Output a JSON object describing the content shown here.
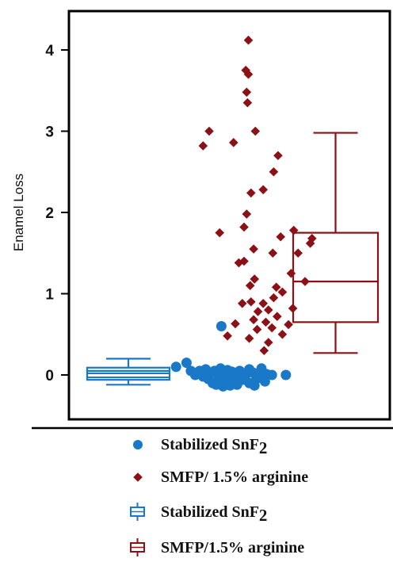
{
  "chart_data": {
    "type": "scatter",
    "ylabel": "Enamel Loss",
    "ylim": [
      -0.5,
      4.5
    ],
    "yticks": [
      0,
      1,
      2,
      3,
      4
    ],
    "grid": false,
    "legend_position": "bottom",
    "series": [
      {
        "name": "Stabilized SnF₂",
        "kind": "points",
        "marker": "circle",
        "color": "#1a78c8",
        "points": [
          [
            0.02,
            0.1
          ],
          [
            0.14,
            0.15
          ],
          [
            0.19,
            0.05
          ],
          [
            0.24,
            0.0
          ],
          [
            0.29,
            0.05
          ],
          [
            0.33,
            -0.02
          ],
          [
            0.36,
            0.07
          ],
          [
            0.39,
            -0.05
          ],
          [
            0.42,
            0.02
          ],
          [
            0.44,
            -0.1
          ],
          [
            0.46,
            0.05
          ],
          [
            0.48,
            -0.12
          ],
          [
            0.5,
            0.0
          ],
          [
            0.51,
            -0.08
          ],
          [
            0.53,
            0.08
          ],
          [
            0.55,
            -0.05
          ],
          [
            0.56,
            -0.14
          ],
          [
            0.58,
            0.03
          ],
          [
            0.6,
            -0.1
          ],
          [
            0.61,
            0.06
          ],
          [
            0.63,
            -0.02
          ],
          [
            0.64,
            -0.13
          ],
          [
            0.66,
            0.04
          ],
          [
            0.68,
            -0.08
          ],
          [
            0.7,
            0.0
          ],
          [
            0.72,
            -0.12
          ],
          [
            0.75,
            0.05
          ],
          [
            0.78,
            -0.06
          ],
          [
            0.82,
            0.0
          ],
          [
            0.86,
            -0.1
          ],
          [
            0.9,
            0.03
          ],
          [
            0.94,
            -0.05
          ],
          [
            0.98,
            0.0
          ],
          [
            1.06,
            0.01
          ],
          [
            1.28,
            0.0
          ],
          [
            0.86,
            0.07
          ],
          [
            0.92,
            -0.13
          ],
          [
            1.0,
            0.08
          ],
          [
            1.04,
            -0.08
          ],
          [
            1.12,
            0.0
          ],
          [
            0.54,
            0.6
          ]
        ]
      },
      {
        "name": "SMFP/ 1.5% arginine",
        "kind": "points",
        "marker": "diamond",
        "color": "#8b1116",
        "points": [
          [
            0.85,
            4.12
          ],
          [
            0.82,
            3.75
          ],
          [
            0.85,
            3.7
          ],
          [
            0.83,
            3.48
          ],
          [
            0.84,
            3.35
          ],
          [
            0.4,
            3.0
          ],
          [
            0.93,
            3.0
          ],
          [
            0.33,
            2.82
          ],
          [
            0.68,
            2.86
          ],
          [
            1.19,
            2.7
          ],
          [
            1.14,
            2.5
          ],
          [
            1.02,
            2.28
          ],
          [
            0.88,
            2.24
          ],
          [
            0.83,
            1.98
          ],
          [
            0.8,
            1.82
          ],
          [
            0.52,
            1.75
          ],
          [
            1.37,
            1.78
          ],
          [
            1.22,
            1.7
          ],
          [
            1.58,
            1.68
          ],
          [
            1.56,
            1.62
          ],
          [
            1.42,
            1.5
          ],
          [
            1.13,
            1.5
          ],
          [
            0.91,
            1.55
          ],
          [
            0.8,
            1.4
          ],
          [
            1.34,
            1.25
          ],
          [
            0.74,
            1.38
          ],
          [
            1.5,
            1.15
          ],
          [
            0.92,
            1.18
          ],
          [
            0.87,
            1.1
          ],
          [
            1.17,
            1.08
          ],
          [
            1.24,
            1.02
          ],
          [
            1.14,
            0.95
          ],
          [
            1.02,
            0.88
          ],
          [
            0.88,
            0.9
          ],
          [
            0.78,
            0.88
          ],
          [
            1.08,
            0.8
          ],
          [
            1.36,
            0.82
          ],
          [
            0.96,
            0.78
          ],
          [
            1.18,
            0.72
          ],
          [
            0.91,
            0.68
          ],
          [
            1.31,
            0.62
          ],
          [
            1.05,
            0.65
          ],
          [
            0.7,
            0.63
          ],
          [
            0.95,
            0.56
          ],
          [
            1.12,
            0.58
          ],
          [
            1.24,
            0.5
          ],
          [
            0.61,
            0.48
          ],
          [
            0.86,
            0.45
          ],
          [
            1.08,
            0.4
          ],
          [
            1.03,
            0.3
          ]
        ]
      },
      {
        "name": "Stabilized SnF₂",
        "kind": "box",
        "color": "#1a78c8",
        "box": {
          "whisker_low": -0.12,
          "q1": -0.06,
          "median": 0.02,
          "q3": 0.09,
          "whisker_high": 0.2,
          "extra_lines": [
            -0.03,
            0.05
          ]
        }
      },
      {
        "name": "SMFP/1.5% arginine",
        "kind": "box",
        "color": "#8b1116",
        "box": {
          "whisker_low": 0.27,
          "q1": 0.65,
          "median": 1.15,
          "q3": 1.75,
          "whisker_high": 2.98
        }
      }
    ]
  },
  "legend": [
    {
      "label": "Stabilized SnF",
      "sub": "2",
      "marker": "circle",
      "color": "#1a78c8"
    },
    {
      "label": "SMFP/ 1.5% arginine",
      "sub": "",
      "marker": "diamond",
      "color": "#8b1116"
    },
    {
      "label": "Stabilized SnF",
      "sub": "2",
      "marker": "box",
      "color": "#1a78c8"
    },
    {
      "label": "SMFP/1.5% arginine",
      "sub": "",
      "marker": "box",
      "color": "#8b1116"
    }
  ]
}
